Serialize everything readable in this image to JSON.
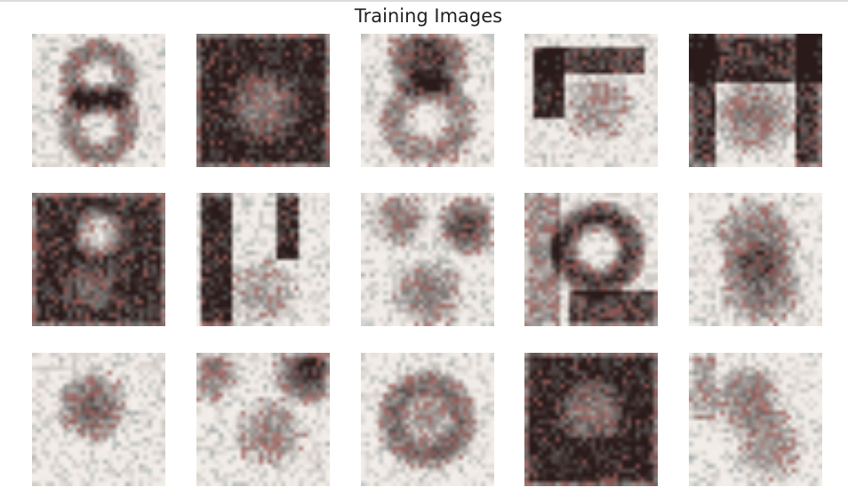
{
  "figure": {
    "title": "Training Images",
    "rows": 3,
    "cols": 5,
    "palette": {
      "light": "#f2ede8",
      "dark": "#2a1b1a",
      "red": "#a45a55",
      "teal": "#70888a"
    },
    "images": [
      {
        "id": "r1c1",
        "shape": "digit-8-light"
      },
      {
        "id": "r1c2",
        "shape": "digit-on-dark"
      },
      {
        "id": "r1c3",
        "shape": "dark-top"
      },
      {
        "id": "r1c4",
        "shape": "dark-left-band"
      },
      {
        "id": "r1c5",
        "shape": "dark-frame"
      },
      {
        "id": "r2c1",
        "shape": "dark-with-light-blob"
      },
      {
        "id": "r2c2",
        "shape": "dark-vertical-bands"
      },
      {
        "id": "r2c3",
        "shape": "light-mixed"
      },
      {
        "id": "r2c4",
        "shape": "dark-ring"
      },
      {
        "id": "r2c5",
        "shape": "light-textured"
      },
      {
        "id": "r3c1",
        "shape": "light-blob"
      },
      {
        "id": "r3c2",
        "shape": "light-dark-top-right"
      },
      {
        "id": "r3c3",
        "shape": "light-digit"
      },
      {
        "id": "r3c4",
        "shape": "dark-heavy"
      },
      {
        "id": "r3c5",
        "shape": "light-textured-2"
      }
    ]
  }
}
